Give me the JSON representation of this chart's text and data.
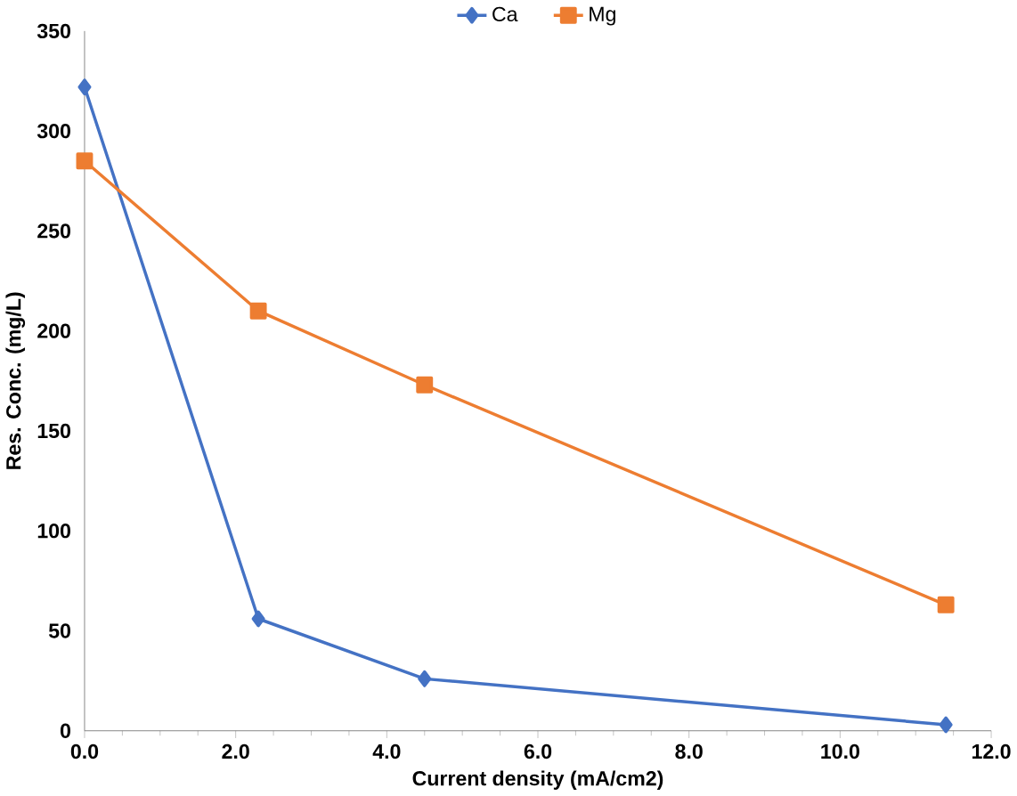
{
  "chart_data": {
    "type": "line",
    "xlabel": "Current density (mA/cm2)",
    "ylabel": "Res. Conc. (mg/L)",
    "x": [
      0,
      2.3,
      4.5,
      11.4
    ],
    "series": [
      {
        "name": "Ca",
        "color": "#4472c4",
        "marker": "diamond",
        "values": [
          322,
          56,
          26,
          3
        ]
      },
      {
        "name": "Mg",
        "color": "#ed7d31",
        "marker": "square",
        "values": [
          285,
          210,
          173,
          63
        ]
      }
    ],
    "xlim": [
      0,
      12
    ],
    "xticks": [
      {
        "value": 0,
        "label": "0.0"
      },
      {
        "value": 2,
        "label": "2.0"
      },
      {
        "value": 4,
        "label": "4.0"
      },
      {
        "value": 6,
        "label": "6.0"
      },
      {
        "value": 8,
        "label": "8.0"
      },
      {
        "value": 10,
        "label": "10.0"
      },
      {
        "value": 12,
        "label": "12.0"
      }
    ],
    "ylim": [
      0,
      350
    ],
    "yticks": [
      0,
      50,
      100,
      150,
      200,
      250,
      300,
      350
    ],
    "grid": false,
    "legend": "top"
  }
}
